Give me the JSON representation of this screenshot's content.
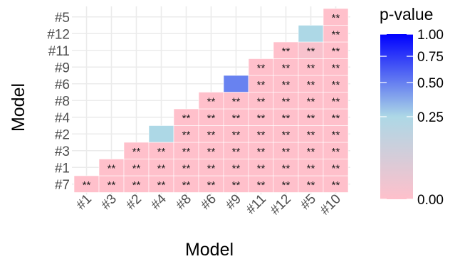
{
  "chart_data": {
    "type": "heatmap",
    "title": "",
    "xlabel": "Model",
    "ylabel": "Model",
    "x_categories": [
      "#1",
      "#3",
      "#2",
      "#4",
      "#8",
      "#6",
      "#9",
      "#11",
      "#12",
      "#5",
      "#10"
    ],
    "y_categories": [
      "#7",
      "#1",
      "#3",
      "#2",
      "#4",
      "#8",
      "#6",
      "#9",
      "#11",
      "#12",
      "#5"
    ],
    "grid": true,
    "cells": [
      {
        "x": "#1",
        "y": "#7",
        "p": 0.0,
        "label": "**"
      },
      {
        "x": "#3",
        "y": "#7",
        "p": 0.0,
        "label": "**"
      },
      {
        "x": "#3",
        "y": "#1",
        "p": 0.0,
        "label": "**"
      },
      {
        "x": "#2",
        "y": "#7",
        "p": 0.0,
        "label": "**"
      },
      {
        "x": "#2",
        "y": "#1",
        "p": 0.0,
        "label": "**"
      },
      {
        "x": "#2",
        "y": "#3",
        "p": 0.0,
        "label": "**"
      },
      {
        "x": "#4",
        "y": "#7",
        "p": 0.0,
        "label": "**"
      },
      {
        "x": "#4",
        "y": "#1",
        "p": 0.0,
        "label": "**"
      },
      {
        "x": "#4",
        "y": "#3",
        "p": 0.0,
        "label": "**"
      },
      {
        "x": "#4",
        "y": "#2",
        "p": 0.25,
        "label": ""
      },
      {
        "x": "#8",
        "y": "#7",
        "p": 0.0,
        "label": "**"
      },
      {
        "x": "#8",
        "y": "#1",
        "p": 0.0,
        "label": "**"
      },
      {
        "x": "#8",
        "y": "#3",
        "p": 0.0,
        "label": "**"
      },
      {
        "x": "#8",
        "y": "#2",
        "p": 0.0,
        "label": "**"
      },
      {
        "x": "#8",
        "y": "#4",
        "p": 0.0,
        "label": "**"
      },
      {
        "x": "#6",
        "y": "#7",
        "p": 0.0,
        "label": "**"
      },
      {
        "x": "#6",
        "y": "#1",
        "p": 0.0,
        "label": "**"
      },
      {
        "x": "#6",
        "y": "#3",
        "p": 0.0,
        "label": "**"
      },
      {
        "x": "#6",
        "y": "#2",
        "p": 0.0,
        "label": "**"
      },
      {
        "x": "#6",
        "y": "#4",
        "p": 0.0,
        "label": "**"
      },
      {
        "x": "#6",
        "y": "#8",
        "p": 0.0,
        "label": "**"
      },
      {
        "x": "#9",
        "y": "#7",
        "p": 0.0,
        "label": "**"
      },
      {
        "x": "#9",
        "y": "#1",
        "p": 0.0,
        "label": "**"
      },
      {
        "x": "#9",
        "y": "#3",
        "p": 0.0,
        "label": "**"
      },
      {
        "x": "#9",
        "y": "#2",
        "p": 0.0,
        "label": "**"
      },
      {
        "x": "#9",
        "y": "#4",
        "p": 0.0,
        "label": "**"
      },
      {
        "x": "#9",
        "y": "#8",
        "p": 0.0,
        "label": "**"
      },
      {
        "x": "#9",
        "y": "#6",
        "p": 0.55,
        "label": ""
      },
      {
        "x": "#11",
        "y": "#7",
        "p": 0.0,
        "label": "**"
      },
      {
        "x": "#11",
        "y": "#1",
        "p": 0.0,
        "label": "**"
      },
      {
        "x": "#11",
        "y": "#3",
        "p": 0.0,
        "label": "**"
      },
      {
        "x": "#11",
        "y": "#2",
        "p": 0.0,
        "label": "**"
      },
      {
        "x": "#11",
        "y": "#4",
        "p": 0.0,
        "label": "**"
      },
      {
        "x": "#11",
        "y": "#8",
        "p": 0.0,
        "label": "**"
      },
      {
        "x": "#11",
        "y": "#6",
        "p": 0.0,
        "label": "**"
      },
      {
        "x": "#11",
        "y": "#9",
        "p": 0.0,
        "label": "**"
      },
      {
        "x": "#12",
        "y": "#7",
        "p": 0.0,
        "label": "**"
      },
      {
        "x": "#12",
        "y": "#1",
        "p": 0.0,
        "label": "**"
      },
      {
        "x": "#12",
        "y": "#3",
        "p": 0.0,
        "label": "**"
      },
      {
        "x": "#12",
        "y": "#2",
        "p": 0.0,
        "label": "**"
      },
      {
        "x": "#12",
        "y": "#4",
        "p": 0.0,
        "label": "**"
      },
      {
        "x": "#12",
        "y": "#8",
        "p": 0.0,
        "label": "**"
      },
      {
        "x": "#12",
        "y": "#6",
        "p": 0.0,
        "label": "**"
      },
      {
        "x": "#12",
        "y": "#9",
        "p": 0.0,
        "label": "**"
      },
      {
        "x": "#12",
        "y": "#11",
        "p": 0.0,
        "label": "**"
      },
      {
        "x": "#5",
        "y": "#7",
        "p": 0.0,
        "label": "**"
      },
      {
        "x": "#5",
        "y": "#1",
        "p": 0.0,
        "label": "**"
      },
      {
        "x": "#5",
        "y": "#3",
        "p": 0.0,
        "label": "**"
      },
      {
        "x": "#5",
        "y": "#2",
        "p": 0.0,
        "label": "**"
      },
      {
        "x": "#5",
        "y": "#4",
        "p": 0.0,
        "label": "**"
      },
      {
        "x": "#5",
        "y": "#8",
        "p": 0.0,
        "label": "**"
      },
      {
        "x": "#5",
        "y": "#6",
        "p": 0.0,
        "label": "**"
      },
      {
        "x": "#5",
        "y": "#9",
        "p": 0.0,
        "label": "**"
      },
      {
        "x": "#5",
        "y": "#11",
        "p": 0.02,
        "label": "**"
      },
      {
        "x": "#5",
        "y": "#12",
        "p": 0.25,
        "label": ""
      },
      {
        "x": "#10",
        "y": "#7",
        "p": 0.0,
        "label": "**"
      },
      {
        "x": "#10",
        "y": "#1",
        "p": 0.0,
        "label": "**"
      },
      {
        "x": "#10",
        "y": "#3",
        "p": 0.0,
        "label": "**"
      },
      {
        "x": "#10",
        "y": "#2",
        "p": 0.0,
        "label": "**"
      },
      {
        "x": "#10",
        "y": "#4",
        "p": 0.0,
        "label": "**"
      },
      {
        "x": "#10",
        "y": "#8",
        "p": 0.0,
        "label": "**"
      },
      {
        "x": "#10",
        "y": "#6",
        "p": 0.0,
        "label": "**"
      },
      {
        "x": "#10",
        "y": "#9",
        "p": 0.0,
        "label": "**"
      },
      {
        "x": "#10",
        "y": "#11",
        "p": 0.0,
        "label": "**"
      },
      {
        "x": "#10",
        "y": "#12",
        "p": 0.0,
        "label": "**"
      },
      {
        "x": "#10",
        "y": "#5",
        "p": 0.0,
        "label": "**"
      }
    ],
    "legend": {
      "title": "p-value",
      "placement": "right",
      "breaks": [
        "1.00",
        "0.75",
        "0.50",
        "0.25",
        "0.00"
      ],
      "break_values": [
        1.0,
        0.75,
        0.5,
        0.25,
        0.0
      ],
      "scale": "sqrt",
      "gradient_stops": [
        {
          "p": 0.0,
          "color": "#ffc0cb"
        },
        {
          "p": 0.25,
          "color": "#add8e6"
        },
        {
          "p": 1.0,
          "color": "#0000ff"
        }
      ]
    }
  }
}
